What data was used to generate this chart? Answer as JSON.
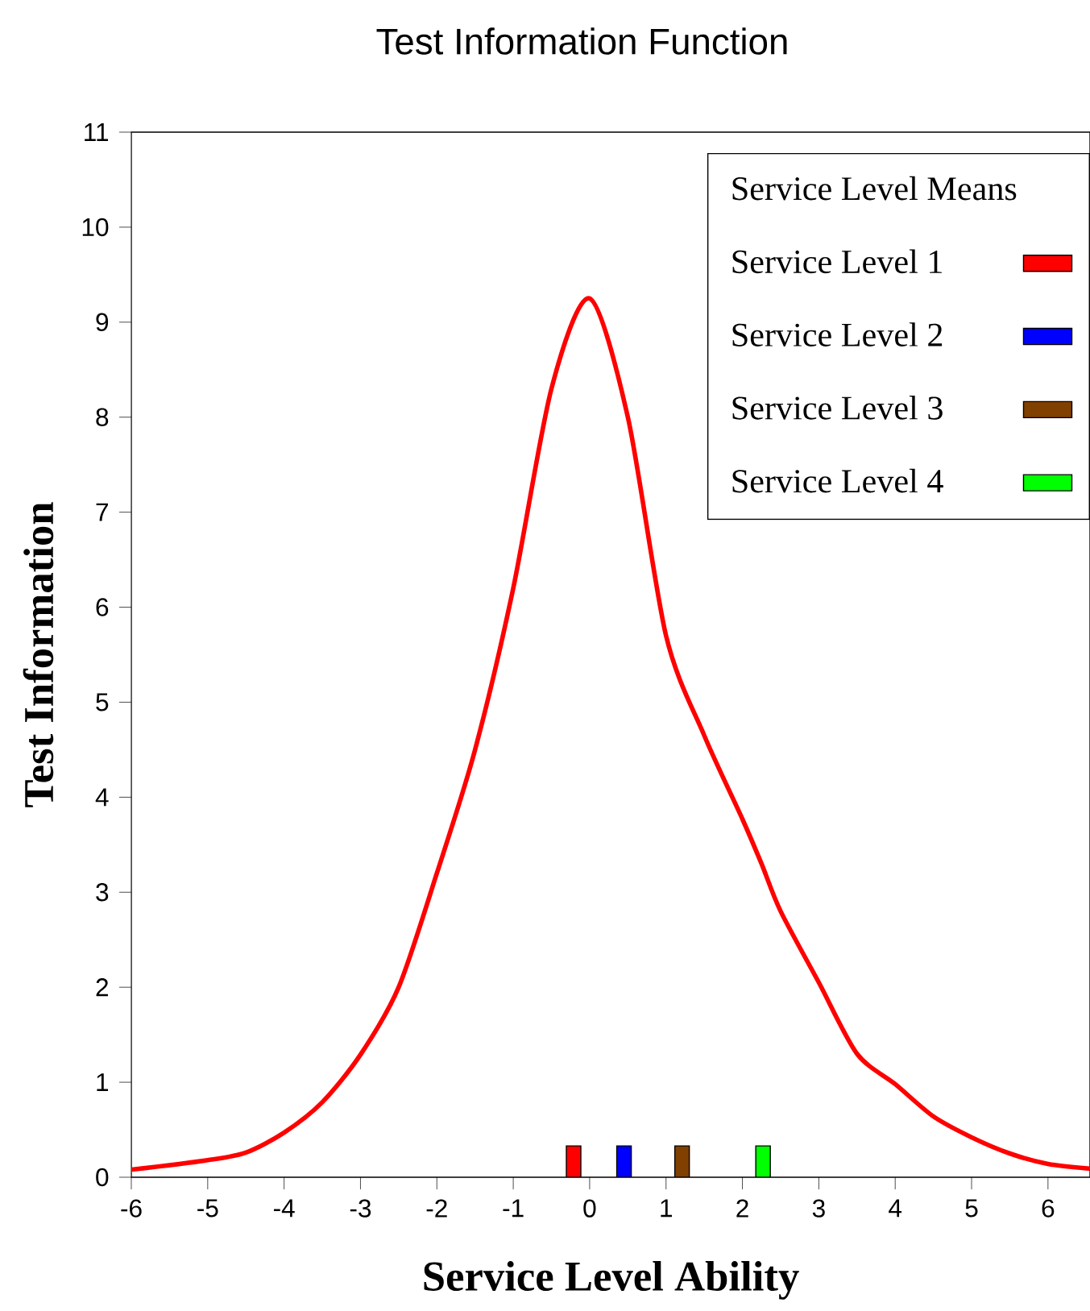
{
  "chart_data": {
    "type": "line",
    "title": "Test Information Function",
    "xlabel": "Service Level Ability",
    "ylabel": "Test Information",
    "legend_title": "Service Level Means",
    "xlim": [
      -6,
      6.55
    ],
    "ylim": [
      0,
      11
    ],
    "xticks": [
      -6,
      -5,
      -4,
      -3,
      -2,
      -1,
      0,
      1,
      2,
      3,
      4,
      5,
      6
    ],
    "yticks": [
      0,
      1,
      2,
      3,
      4,
      5,
      6,
      7,
      8,
      9,
      10,
      11
    ],
    "grid": false,
    "legend": "top right",
    "marker": "none",
    "line_style": "solid",
    "series": [
      {
        "color": "#ff0000",
        "x": [
          -6,
          -5,
          -4.5,
          -4,
          -3.5,
          -3,
          -2.5,
          -2,
          -1.5,
          -1,
          -0.5,
          0,
          0.5,
          1,
          1.5,
          2,
          2.25,
          2.5,
          3,
          3.5,
          4,
          4.5,
          5,
          5.5,
          6,
          6.55
        ],
        "values": [
          0.08,
          0.18,
          0.26,
          0.47,
          0.79,
          1.29,
          2.0,
          3.2,
          4.5,
          6.2,
          8.3,
          9.25,
          8.0,
          5.7,
          4.65,
          3.77,
          3.3,
          2.8,
          2.05,
          1.3,
          0.98,
          0.64,
          0.42,
          0.25,
          0.14,
          0.09
        ]
      },
      {
        "type": "bar",
        "name": "Service Level 1",
        "color": "#ff0000",
        "x": [
          -0.21
        ],
        "values": [
          0.33
        ]
      },
      {
        "type": "bar",
        "name": "Service Level 2",
        "color": "#0000ff",
        "x": [
          0.45
        ],
        "values": [
          0.33
        ]
      },
      {
        "type": "bar",
        "name": "Service Level 3",
        "color": "#804000",
        "x": [
          1.21
        ],
        "values": [
          0.33
        ]
      },
      {
        "type": "bar",
        "name": "Service Level 4",
        "color": "#00ff00",
        "x": [
          2.27
        ],
        "values": [
          0.33
        ]
      }
    ]
  }
}
